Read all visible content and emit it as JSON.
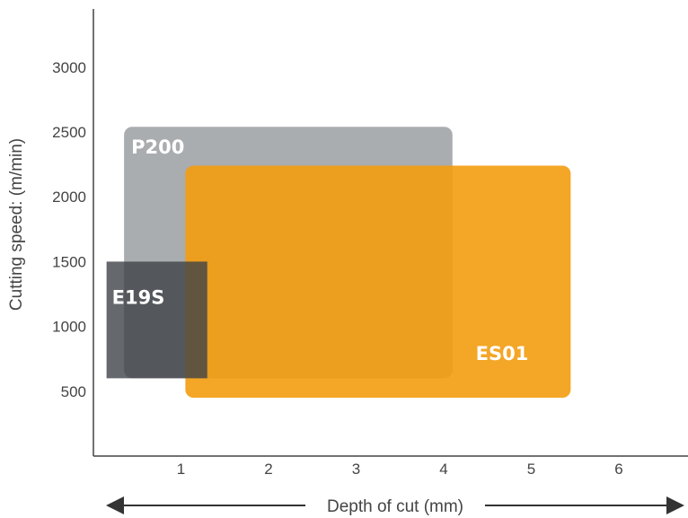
{
  "chart_data": {
    "type": "range-boxes",
    "xlabel": "Depth of cut (mm)",
    "ylabel": "Cutting speed: (m/min)",
    "x_ticks": [
      1,
      2,
      3,
      4,
      5,
      6
    ],
    "y_ticks": [
      500,
      1000,
      1500,
      2000,
      2500,
      3000
    ],
    "xlim": [
      0,
      6.8
    ],
    "ylim": [
      0,
      3500
    ],
    "legend": "none",
    "grid": false,
    "series": [
      {
        "name": "P200",
        "x_range": [
          0.35,
          4.1
        ],
        "y_range": [
          600,
          2540
        ],
        "color": "#8e9196",
        "opacity": 0.75
      },
      {
        "name": "ES01",
        "x_range": [
          1.05,
          5.45
        ],
        "y_range": [
          450,
          2240
        ],
        "color": "#f39c0e",
        "opacity": 0.9
      },
      {
        "name": "E19S",
        "x_range": [
          0.15,
          1.3
        ],
        "y_range": [
          600,
          1500
        ],
        "color": "#3f4247",
        "opacity": 0.8
      }
    ]
  }
}
